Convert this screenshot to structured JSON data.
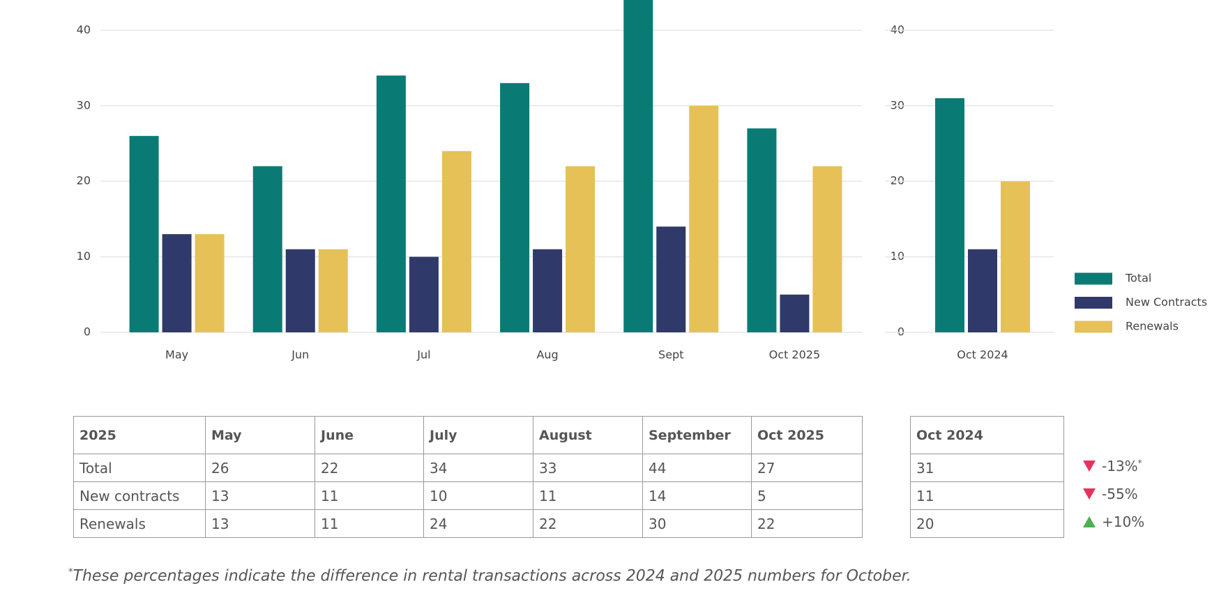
{
  "chart_data": [
    {
      "type": "bar",
      "categories": [
        "May",
        "Jun",
        "Jul",
        "Aug",
        "Sept",
        "Oct 2025"
      ],
      "series": [
        {
          "color": "#0a7b74",
          "values": [
            26,
            22,
            34,
            33,
            44,
            27
          ]
        },
        {
          "color": "#2f3a6b",
          "values": [
            13,
            11,
            10,
            11,
            14,
            5
          ]
        },
        {
          "color": "#e5c157",
          "values": [
            13,
            11,
            24,
            22,
            30,
            22
          ]
        }
      ],
      "ylim": [
        0,
        44
      ],
      "yticks": [
        0,
        10,
        20,
        30,
        40
      ],
      "grid": true
    },
    {
      "type": "bar",
      "categories": [
        "Oct 2024"
      ],
      "series": [
        {
          "name": "Total",
          "color": "#0a7b74",
          "values": [
            31
          ]
        },
        {
          "name": "New Contracts",
          "color": "#2f3a6b",
          "values": [
            11
          ]
        },
        {
          "name": "Renewals",
          "color": "#e5c157",
          "values": [
            20
          ]
        }
      ],
      "ylim": [
        0,
        44
      ],
      "yticks": [
        0,
        10,
        20,
        30,
        40
      ],
      "grid": true,
      "legend": "right"
    }
  ],
  "table": {
    "header": [
      "2025",
      "May",
      "June",
      "July",
      "August",
      "September",
      "Oct 2025"
    ],
    "rows": [
      [
        "Total",
        "26",
        "22",
        "34",
        "33",
        "44",
        "27"
      ],
      [
        "New contracts",
        "13",
        "11",
        "10",
        "11",
        "14",
        "5"
      ],
      [
        "Renewals",
        "13",
        "11",
        "24",
        "22",
        "30",
        "22"
      ]
    ]
  },
  "table_oct2024": {
    "header": "Oct 2024",
    "rows": [
      "31",
      "11",
      "20"
    ]
  },
  "changes": [
    {
      "direction": "down",
      "label": "-13%",
      "note": "*"
    },
    {
      "direction": "down",
      "label": "-55%"
    },
    {
      "direction": "up",
      "label": "+10%"
    }
  ],
  "footnote": {
    "marker": "*",
    "text": "These percentages indicate the difference in rental transactions across 2024 and 2025 numbers for October."
  }
}
